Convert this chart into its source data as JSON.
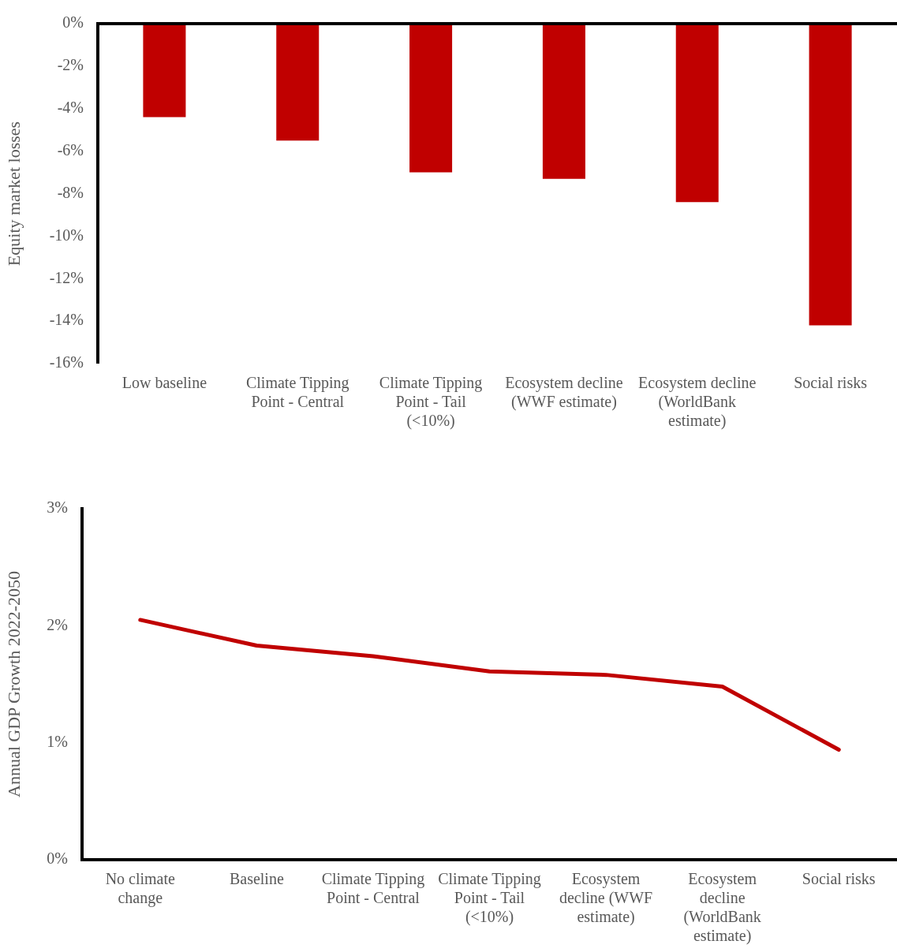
{
  "chart_data": [
    {
      "type": "bar",
      "ylabel": "Equity market losses",
      "categories": [
        "Low baseline",
        "Climate Tipping Point - Central",
        "Climate Tipping Point - Tail (<10%)",
        "Ecosystem decline (WWF estimate)",
        "Ecosystem decline (WorldBank estimate)",
        "Social risks"
      ],
      "values": [
        -4.4,
        -5.5,
        -7.0,
        -7.3,
        -8.4,
        -14.2
      ],
      "color": "#c00000",
      "ylim": [
        -16,
        0
      ],
      "yticks": [
        {
          "value": -16,
          "label": "-16%"
        },
        {
          "value": -14,
          "label": "-14%"
        },
        {
          "value": -12,
          "label": "-12%"
        },
        {
          "value": -10,
          "label": "-10%"
        },
        {
          "value": -8,
          "label": "-8%"
        },
        {
          "value": -6,
          "label": "-6%"
        },
        {
          "value": -4,
          "label": "-4%"
        },
        {
          "value": -2,
          "label": "-2%"
        },
        {
          "value": 0,
          "label": "0%"
        }
      ],
      "grid": false,
      "legend": false
    },
    {
      "type": "line",
      "ylabel": "Annual GDP Growth 2022-2050",
      "categories": [
        "No climate change",
        "Baseline",
        "Climate Tipping Point - Central",
        "Climate Tipping Point - Tail (<10%)",
        "Ecosystem decline (WWF estimate)",
        "Ecosystem decline (WorldBank estimate)",
        "Social risks"
      ],
      "values": [
        2.05,
        1.83,
        1.74,
        1.61,
        1.58,
        1.48,
        0.94
      ],
      "color": "#c00000",
      "ylim": [
        0,
        3
      ],
      "yticks": [
        {
          "value": 0,
          "label": "0%"
        },
        {
          "value": 1,
          "label": "1%"
        },
        {
          "value": 2,
          "label": "2%"
        },
        {
          "value": 3,
          "label": "3%"
        }
      ],
      "grid": false,
      "legend": false,
      "marker": "none",
      "line_style": "solid"
    }
  ]
}
